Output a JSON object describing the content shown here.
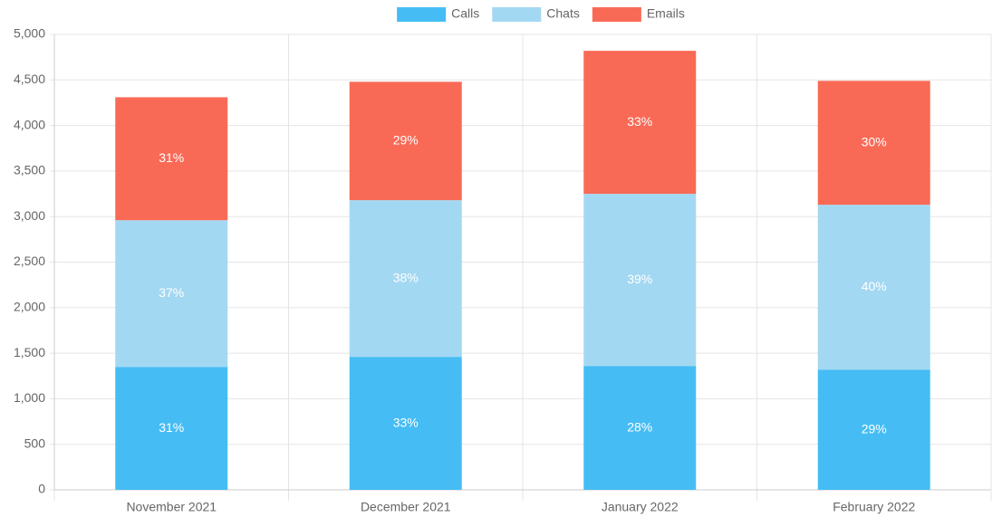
{
  "chart_data": {
    "type": "stacked_bar",
    "categories": [
      "November 2021",
      "December 2021",
      "January 2022",
      "February 2022"
    ],
    "series": [
      {
        "name": "Calls",
        "color": "#45bdf4",
        "values": [
          1350,
          1460,
          1360,
          1320
        ],
        "value_labels": [
          "31%",
          "33%",
          "28%",
          "29%"
        ]
      },
      {
        "name": "Chats",
        "color": "#a3d8f2",
        "values": [
          1610,
          1720,
          1890,
          1810
        ],
        "value_labels": [
          "37%",
          "38%",
          "39%",
          "40%"
        ]
      },
      {
        "name": "Emails",
        "color": "#f96a56",
        "values": [
          1350,
          1300,
          1570,
          1360
        ],
        "value_labels": [
          "31%",
          "29%",
          "33%",
          "30%"
        ]
      }
    ],
    "ylim": [
      0,
      5000
    ],
    "yticks": [
      0,
      500,
      {
        "value": 1000,
        "label": "1,000"
      },
      {
        "value": 1500,
        "label": "1,500"
      },
      {
        "value": 2000,
        "label": "2,000"
      },
      {
        "value": 2500,
        "label": "2,500"
      },
      {
        "value": 3000,
        "label": "3,000"
      },
      {
        "value": 3500,
        "label": "3,500"
      },
      {
        "value": 4000,
        "label": "4,000"
      },
      {
        "value": 4500,
        "label": "4,500"
      },
      {
        "value": 5000,
        "label": "5,000"
      }
    ],
    "grid": true,
    "legend": "top"
  }
}
